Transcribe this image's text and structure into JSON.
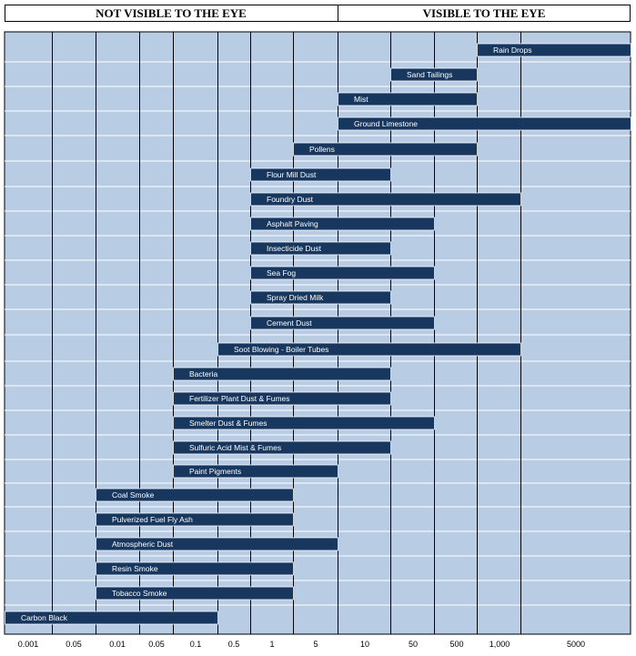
{
  "header": {
    "left": "NOT VISIBLE TO THE EYE",
    "right": "VISIBLE TO THE EYE"
  },
  "colors": {
    "plot_bg": "#b8cce4",
    "bar": "#17375e",
    "row_line": "#ffffff",
    "grid": "#000000"
  },
  "chart_data": {
    "type": "bar",
    "orientation": "horizontal-range",
    "x_tick_labels": [
      "0.001",
      "0.05",
      "0.01",
      "0.05",
      "0.1",
      "0.5",
      "1",
      "5",
      "10",
      "50",
      "500",
      "1,000",
      "5000"
    ],
    "legend": "none",
    "grid": true,
    "series": [
      {
        "label": "Rain Drops",
        "from_tick": 11,
        "to_tick": 13
      },
      {
        "label": "Sand Tailings",
        "from_tick": 9,
        "to_tick": 11
      },
      {
        "label": "Mist",
        "from_tick": 8,
        "to_tick": 11
      },
      {
        "label": "Ground Limestone",
        "from_tick": 8,
        "to_tick": 13
      },
      {
        "label": "Pollens",
        "from_tick": 7,
        "to_tick": 11
      },
      {
        "label": "Flour Mill Dust",
        "from_tick": 6,
        "to_tick": 9
      },
      {
        "label": "Foundry Dust",
        "from_tick": 6,
        "to_tick": 12
      },
      {
        "label": "Asphalt Paving",
        "from_tick": 6,
        "to_tick": 10
      },
      {
        "label": "Insecticide Dust",
        "from_tick": 6,
        "to_tick": 9
      },
      {
        "label": "Sea Fog",
        "from_tick": 6,
        "to_tick": 10
      },
      {
        "label": "Spray Dried Milk",
        "from_tick": 6,
        "to_tick": 9
      },
      {
        "label": "Cement Dust",
        "from_tick": 6,
        "to_tick": 10
      },
      {
        "label": "Soot Blowing - Boiler Tubes",
        "from_tick": 5,
        "to_tick": 12
      },
      {
        "label": "Bacteria",
        "from_tick": 4,
        "to_tick": 9
      },
      {
        "label": "Fertilizer Plant Dust & Fumes",
        "from_tick": 4,
        "to_tick": 9
      },
      {
        "label": "Smelter Dust & Fumes",
        "from_tick": 4,
        "to_tick": 10
      },
      {
        "label": "Sulfuric Acid Mist & Fumes",
        "from_tick": 4,
        "to_tick": 9
      },
      {
        "label": "Paint Pigments",
        "from_tick": 4,
        "to_tick": 8
      },
      {
        "label": "Coal Smoke",
        "from_tick": 2,
        "to_tick": 7
      },
      {
        "label": "Pulverized Fuel Fly Ash",
        "from_tick": 2,
        "to_tick": 7
      },
      {
        "label": "Atmospheric Dust",
        "from_tick": 2,
        "to_tick": 8
      },
      {
        "label": "Resin Smoke",
        "from_tick": 2,
        "to_tick": 7
      },
      {
        "label": "Tobacco Smoke",
        "from_tick": 2,
        "to_tick": 7
      },
      {
        "label": "Carbon Black",
        "from_tick": 0,
        "to_tick": 5
      }
    ]
  }
}
